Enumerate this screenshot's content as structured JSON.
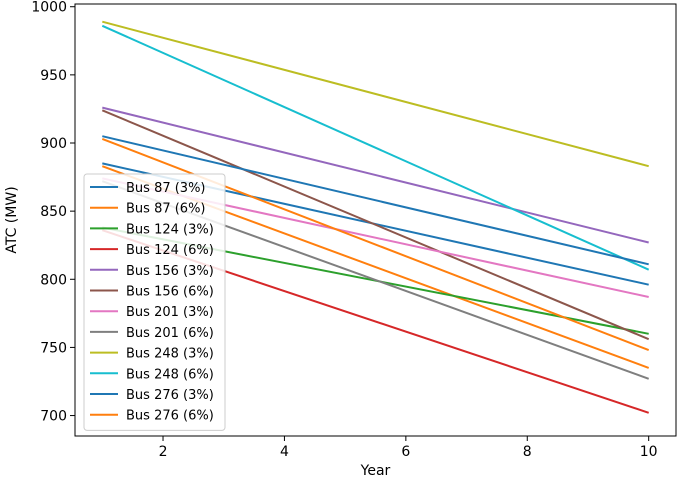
{
  "chart_data": {
    "type": "line",
    "xlabel": "Year",
    "ylabel": "ATC (MW)",
    "xlim": [
      0.55,
      10.45
    ],
    "ylim": [
      685,
      1002
    ],
    "xticks": [
      2,
      4,
      6,
      8,
      10
    ],
    "yticks": [
      700,
      750,
      800,
      850,
      900,
      950,
      1000
    ],
    "xtick_labels": [
      "2",
      "4",
      "6",
      "8",
      "10"
    ],
    "ytick_labels": [
      "700",
      "750",
      "800",
      "850",
      "900",
      "950",
      "1000"
    ],
    "grid": false,
    "legend_position": "center-left",
    "series": [
      {
        "name": "Bus 87 (3%)",
        "color": "#1f77b4",
        "x": [
          1,
          10
        ],
        "y": [
          885,
          796
        ]
      },
      {
        "name": "Bus 87 (6%)",
        "color": "#ff7f0e",
        "x": [
          1,
          10
        ],
        "y": [
          883,
          735
        ]
      },
      {
        "name": "Bus 124 (3%)",
        "color": "#2ca02c",
        "x": [
          1,
          10
        ],
        "y": [
          838,
          760
        ]
      },
      {
        "name": "Bus 124 (6%)",
        "color": "#d62728",
        "x": [
          1,
          10
        ],
        "y": [
          836,
          702
        ]
      },
      {
        "name": "Bus 156 (3%)",
        "color": "#9467bd",
        "x": [
          1,
          10
        ],
        "y": [
          926,
          827
        ]
      },
      {
        "name": "Bus 156 (6%)",
        "color": "#8c564b",
        "x": [
          1,
          10
        ],
        "y": [
          924,
          756
        ]
      },
      {
        "name": "Bus 201 (3%)",
        "color": "#e377c2",
        "x": [
          1,
          10
        ],
        "y": [
          874,
          787
        ]
      },
      {
        "name": "Bus 201 (6%)",
        "color": "#7f7f7f",
        "x": [
          1,
          10
        ],
        "y": [
          872,
          727
        ]
      },
      {
        "name": "Bus 248 (3%)",
        "color": "#bcbd22",
        "x": [
          1,
          10
        ],
        "y": [
          989,
          883
        ]
      },
      {
        "name": "Bus 248 (6%)",
        "color": "#17becf",
        "x": [
          1,
          10
        ],
        "y": [
          986,
          807
        ]
      },
      {
        "name": "Bus 276 (3%)",
        "color": "#1f77b4",
        "x": [
          1,
          10
        ],
        "y": [
          905,
          811
        ]
      },
      {
        "name": "Bus 276 (6%)",
        "color": "#ff7f0e",
        "x": [
          1,
          10
        ],
        "y": [
          903,
          748
        ]
      }
    ]
  }
}
